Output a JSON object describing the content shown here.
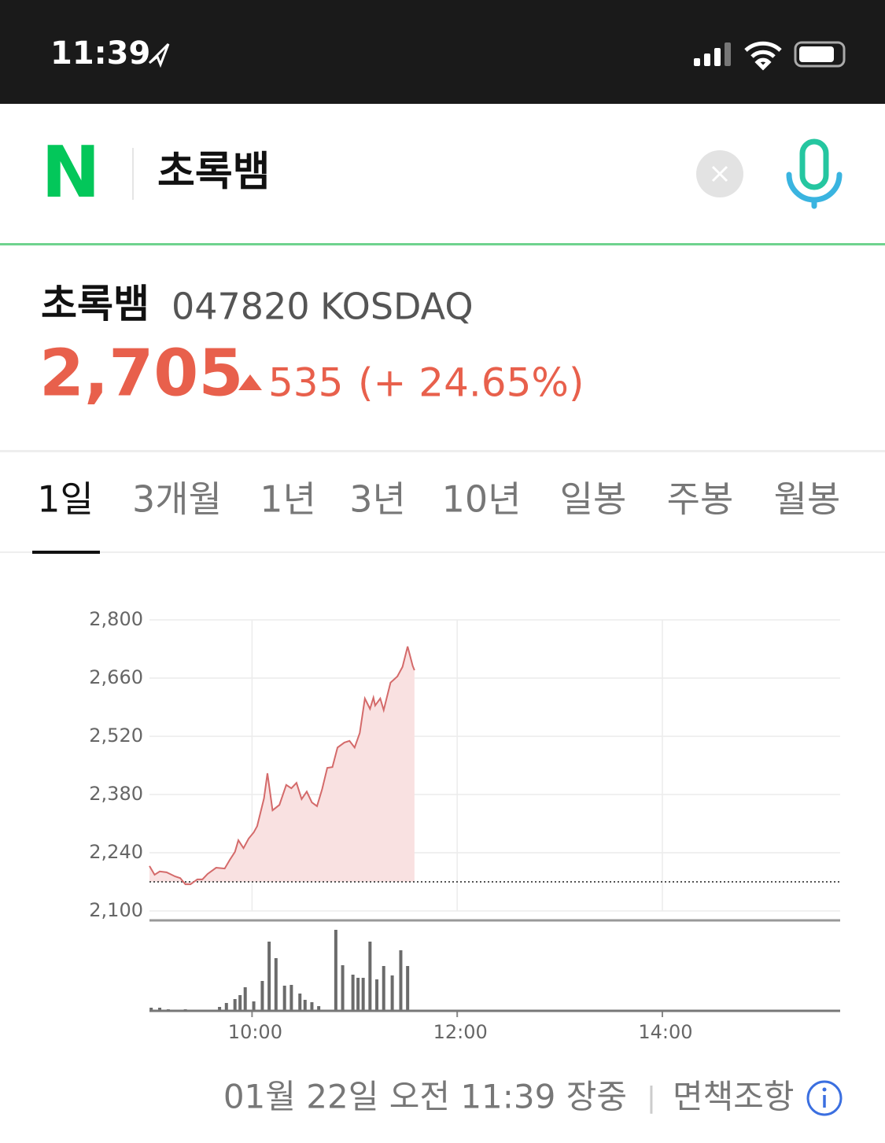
{
  "status_bar": {
    "time": "11:39"
  },
  "search": {
    "logo": "N",
    "query": "초록뱀"
  },
  "stock": {
    "name": "초록뱀",
    "code": "047820",
    "market": "KOSDAQ",
    "price": "2,705",
    "change": "535",
    "change_pct": "(+ 24.65%)"
  },
  "tabs": [
    "1일",
    "3개월",
    "1년",
    "3년",
    "10년",
    "일봉",
    "주봉",
    "월봉"
  ],
  "chart_data": [
    {
      "type": "line",
      "color": "#d46a6a",
      "area_color": "#f9e1e1",
      "reference": 2170,
      "x": [
        540,
        543,
        546,
        550,
        555,
        558,
        561,
        564,
        568,
        571,
        574,
        579,
        584,
        587,
        590,
        592,
        595,
        598,
        601,
        603,
        607,
        609,
        612,
        616,
        620,
        623,
        626,
        629,
        632,
        635,
        638,
        641,
        644,
        647,
        650,
        654,
        657,
        660,
        663,
        666,
        669,
        671,
        672,
        675,
        677,
        681,
        685,
        688,
        691,
        694,
        695
      ],
      "values": [
        2208,
        2187,
        2195,
        2193,
        2183,
        2179,
        2164,
        2164,
        2176,
        2176,
        2189,
        2204,
        2202,
        2223,
        2242,
        2270,
        2251,
        2274,
        2289,
        2304,
        2371,
        2431,
        2342,
        2355,
        2403,
        2395,
        2408,
        2369,
        2387,
        2361,
        2352,
        2393,
        2444,
        2446,
        2493,
        2505,
        2509,
        2493,
        2528,
        2611,
        2586,
        2613,
        2594,
        2611,
        2583,
        2649,
        2664,
        2687,
        2736,
        2689,
        2679
      ],
      "xlim": [
        540,
        944
      ],
      "xticks": [
        600,
        720,
        840
      ],
      "ylim": [
        2100,
        2800
      ],
      "yticks": [
        {
          "value": 2100,
          "label": "2,100"
        },
        {
          "value": 2240,
          "label": "2,240"
        },
        {
          "value": 2380,
          "label": "2,380"
        },
        {
          "value": 2520,
          "label": "2,520"
        },
        {
          "value": 2660,
          "label": "2,660"
        },
        {
          "value": 2800,
          "label": "2,800"
        }
      ],
      "grid": true
    },
    {
      "type": "bar",
      "color": "#6b6b6b",
      "x": [
        541,
        546,
        551,
        561,
        581,
        585,
        590,
        593,
        596,
        601,
        606,
        610,
        614,
        619,
        623,
        628,
        631,
        635,
        639,
        649,
        653,
        659,
        662,
        665,
        669,
        673,
        677,
        682,
        687,
        691
      ],
      "values": [
        4,
        4,
        2,
        2,
        5,
        10,
        15,
        20,
        30,
        12,
        38,
        88,
        67,
        32,
        33,
        22,
        14,
        11,
        6,
        103,
        58,
        46,
        42,
        42,
        88,
        40,
        57,
        45,
        77,
        57
      ],
      "xlim": [
        540,
        944
      ],
      "ylim": [
        0,
        110
      ],
      "xticks": [
        {
          "value": 600,
          "label": "10:00"
        },
        {
          "value": 720,
          "label": "12:00"
        },
        {
          "value": 840,
          "label": "14:00"
        }
      ]
    }
  ],
  "footer": {
    "timestamp": "01월 22일 오전 11:39 장중",
    "disclaimer": "면책조항"
  }
}
